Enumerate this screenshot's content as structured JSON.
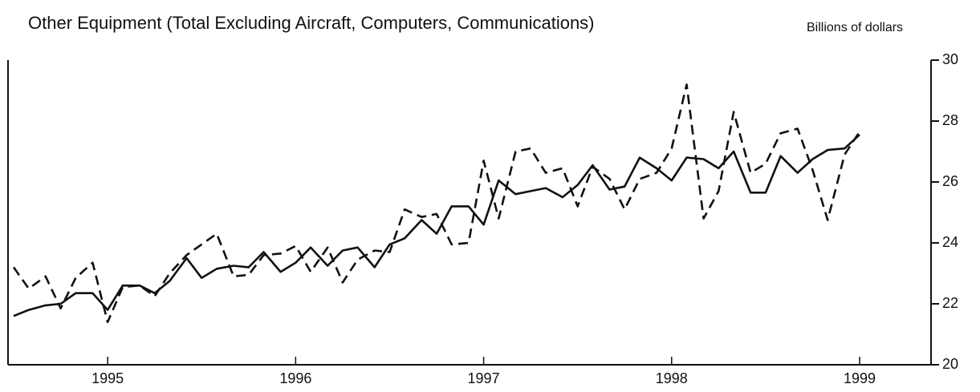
{
  "chart_data": {
    "type": "line",
    "title": "Other Equipment (Total Excluding Aircraft, Computers, Communications)",
    "y_axis_label": "Billions of dollars",
    "x": [
      1994.5,
      1994.58,
      1994.67,
      1994.75,
      1994.83,
      1994.92,
      1995,
      1995.08,
      1995.17,
      1995.25,
      1995.33,
      1995.42,
      1995.5,
      1995.58,
      1995.67,
      1995.75,
      1995.83,
      1995.92,
      1996,
      1996.08,
      1996.17,
      1996.25,
      1996.33,
      1996.42,
      1996.5,
      1996.58,
      1996.67,
      1996.75,
      1996.83,
      1996.92,
      1997,
      1997.08,
      1997.17,
      1997.25,
      1997.33,
      1997.42,
      1997.5,
      1997.58,
      1997.67,
      1997.75,
      1997.83,
      1997.92,
      1998,
      1998.08,
      1998.17,
      1998.25,
      1998.33,
      1998.42,
      1998.5,
      1998.58,
      1998.67,
      1998.75,
      1998.83,
      1998.92,
      1999
    ],
    "series": [
      {
        "color": "#111111",
        "dashed": false,
        "values": [
          21.6,
          21.8,
          21.95,
          22.0,
          22.35,
          22.35,
          21.8,
          22.6,
          22.6,
          22.35,
          22.75,
          23.5,
          22.85,
          23.15,
          23.25,
          23.2,
          23.7,
          23.05,
          23.35,
          23.85,
          23.25,
          23.75,
          23.85,
          23.2,
          23.95,
          24.15,
          24.75,
          24.3,
          25.2,
          25.2,
          24.6,
          26.05,
          25.6,
          25.7,
          25.8,
          25.5,
          25.9,
          26.55,
          25.75,
          25.85,
          26.8,
          26.45,
          26.05,
          26.8,
          26.75,
          26.45,
          27.0,
          25.65,
          25.65,
          26.85,
          26.3,
          26.75,
          27.05,
          27.1,
          27.55
        ]
      },
      {
        "color": "#111111",
        "dashed": true,
        "values": [
          23.2,
          22.5,
          22.9,
          21.85,
          22.85,
          23.35,
          21.4,
          22.55,
          22.6,
          22.25,
          23.0,
          23.6,
          23.95,
          24.3,
          22.9,
          22.95,
          23.6,
          23.65,
          23.9,
          23.05,
          23.85,
          22.7,
          23.45,
          23.75,
          23.7,
          25.1,
          24.85,
          24.95,
          23.95,
          24.0,
          26.7,
          24.8,
          27.0,
          27.1,
          26.3,
          26.45,
          25.2,
          26.5,
          26.1,
          25.1,
          26.1,
          26.3,
          27.1,
          29.2,
          24.8,
          25.7,
          28.3,
          26.3,
          26.6,
          27.6,
          27.75,
          26.4,
          24.75,
          26.9,
          27.65
        ]
      }
    ],
    "xlim": [
      1994.47,
      1999.38
    ],
    "xticks": [
      1995,
      1996,
      1997,
      1998,
      1999
    ],
    "ylim": [
      20,
      30
    ],
    "yticks": [
      20,
      22,
      24,
      26,
      28,
      30
    ],
    "y_axis_side": "right",
    "grid": false
  }
}
